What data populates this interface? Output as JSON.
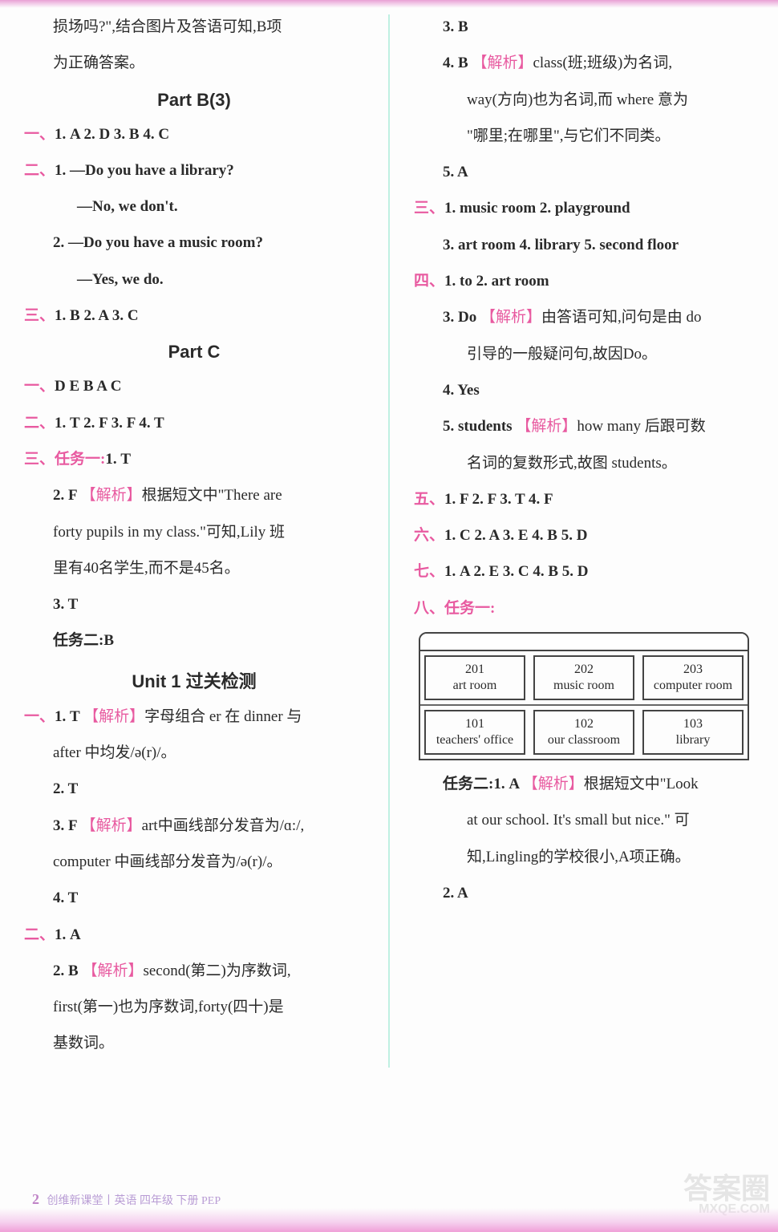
{
  "colors": {
    "cn_num": "#e85aa0",
    "analysis": "#e85aa0",
    "divider": "#bff0e2",
    "footer": "#b99dd5",
    "text": "#2a2a2a",
    "gradient_top": "#e9a0d4",
    "gradient_bottom": "#f0a0d8",
    "building_border": "#444444"
  },
  "typography": {
    "body_fontsize": 19,
    "heading_fontsize": 22,
    "footer_fontsize": 14,
    "room_fontsize": 16
  },
  "left": {
    "intro1": "损场吗?\",结合图片及答语可知,B项",
    "intro2": "为正确答案。",
    "hB3": "Part B(3)",
    "b3_1_label": "一、",
    "b3_1": "1. A   2. D   3. B   4. C",
    "b3_2_label": "二、",
    "b3_2_q1a": "1. —Do you have a library?",
    "b3_2_q1b": "—No, we don't.",
    "b3_2_q2a": "2. —Do you have a music room?",
    "b3_2_q2b": "—Yes, we do.",
    "b3_3_label": "三、",
    "b3_3": "1. B   2. A   3. C",
    "hC": "Part C",
    "c1_label": "一、",
    "c1": "D   E   B   A   C",
    "c2_label": "二、",
    "c2": "1. T   2. F   3. F   4. T",
    "c3_label": "三、任务一:",
    "c3_1": "1. T",
    "c3_2a": "2. F  ",
    "c3_2_ana": "【解析】",
    "c3_2b": "根据短文中\"There are",
    "c3_2c": "forty pupils in my class.\"可知,Lily 班",
    "c3_2d": "里有40名学生,而不是45名。",
    "c3_3": "3. T",
    "c3_task2": "任务二:B",
    "hU1": "Unit 1  过关检测",
    "u1_1_label": "一、",
    "u1_1a": "1. T  ",
    "u1_1_ana": "【解析】",
    "u1_1b": "字母组合 er 在 dinner 与",
    "u1_1c": "after 中均发/ə(r)/。",
    "u1_2": "2. T",
    "u1_3a": "3. F  ",
    "u1_3_ana": "【解析】",
    "u1_3b": "art中画线部分发音为/ɑ:/,",
    "u1_3c": "computer 中画线部分发音为/ə(r)/。",
    "u1_4": "4. T",
    "u2_label": "二、",
    "u2_1": "1. A",
    "u2_2a": "2. B  ",
    "u2_2_ana": "【解析】",
    "u2_2b": "second(第二)为序数词,",
    "u2_2c": "first(第一)也为序数词,forty(四十)是",
    "u2_2d": "基数词。"
  },
  "right": {
    "r_3b": "3. B",
    "r_4a": "4. B  ",
    "r_4_ana": "【解析】",
    "r_4b": "class(班;班级)为名词,",
    "r_4c": "way(方向)也为名词,而 where 意为",
    "r_4d": "\"哪里;在哪里\",与它们不同类。",
    "r_5a": "5. A",
    "r3_label": "三、",
    "r3": "1. music room   2. playground",
    "r3b": "3. art room   4. library   5. second floor",
    "r4_label": "四、",
    "r4_1": "1. to   2. art room",
    "r4_3a": "3. Do  ",
    "r4_3_ana": "【解析】",
    "r4_3b": "由答语可知,问句是由 do",
    "r4_3c": "引导的一般疑问句,故因Do。",
    "r4_4": "4. Yes",
    "r4_5a": "5. students  ",
    "r4_5_ana": "【解析】",
    "r4_5b": "how many 后跟可数",
    "r4_5c": "名词的复数形式,故图 students。",
    "r5_label": "五、",
    "r5": "1. F   2. F   3. T   4. F",
    "r6_label": "六、",
    "r6": "1. C   2. A   3. E   4. B   5. D",
    "r7_label": "七、",
    "r7": "1. A   2. E   3. C   4. B   5. D",
    "r8_label": "八、任务一:",
    "rooms_top": [
      {
        "num": "201",
        "label": "art room"
      },
      {
        "num": "202",
        "label": "music room"
      },
      {
        "num": "203",
        "label": "computer room"
      }
    ],
    "rooms_bottom": [
      {
        "num": "101",
        "label": "teachers' office"
      },
      {
        "num": "102",
        "label": "our classroom"
      },
      {
        "num": "103",
        "label": "library"
      }
    ],
    "task2a": "任务二:1. A  ",
    "task2_ana": "【解析】",
    "task2b": "根据短文中\"Look",
    "task2c": "at our school. It's small but nice.\" 可",
    "task2d": "知,Lingling的学校很小,A项正确。",
    "task2_2": "2. A"
  },
  "footer": {
    "page": "2",
    "text": "创维新课堂丨英语 四年级 下册 PEP"
  },
  "watermark": {
    "main": "答案圈",
    "sub": "MXQE.COM"
  }
}
